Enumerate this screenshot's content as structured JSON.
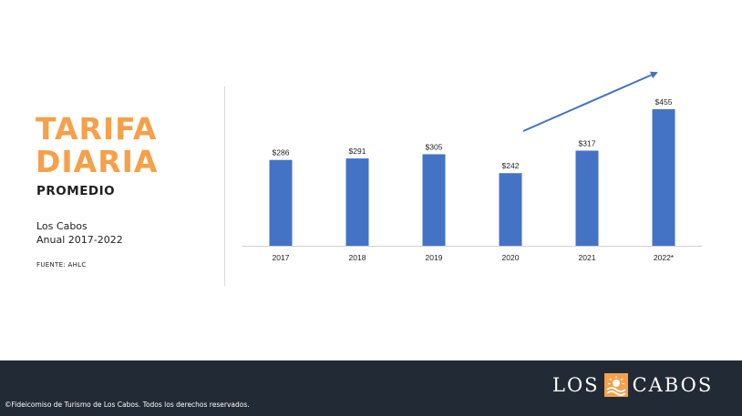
{
  "heading": {
    "line1": "TARIFA",
    "line2": "DIARIA",
    "subtitle": "PROMEDIO",
    "place": "Los Cabos",
    "period": "Anual 2017-2022",
    "source": "FUENTE: AHLC"
  },
  "footer": {
    "logo_left": "LOS",
    "logo_right": "CABOS",
    "logo_icon": "sun-wave-icon",
    "copyright": "©Fideicomiso de Turismo de Los Cabos. Todos los derechos reservados."
  },
  "colors": {
    "accent": "#f5a04a",
    "bar": "#4472c4",
    "arrow": "#4472c4",
    "footer_bg": "#222a35"
  },
  "chart_data": {
    "type": "bar",
    "categories": [
      "2017",
      "2018",
      "2019",
      "2020",
      "2021",
      "2022*"
    ],
    "values": [
      286,
      291,
      305,
      242,
      317,
      455
    ],
    "value_labels": [
      "$286",
      "$291",
      "$305",
      "$242",
      "$317",
      "$455"
    ],
    "ylim": [
      0,
      455
    ],
    "grid": false,
    "legend": "none",
    "annotation": "upward-trend-arrow"
  }
}
